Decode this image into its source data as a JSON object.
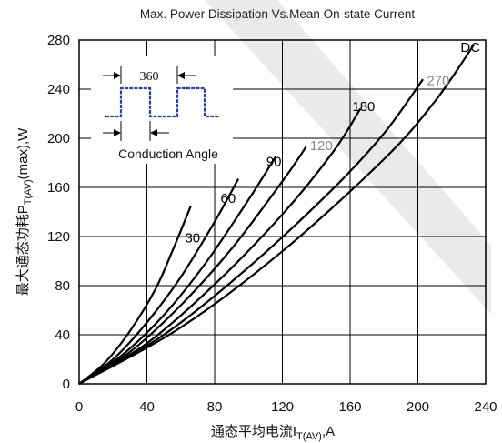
{
  "chart_data": {
    "type": "line",
    "title": "Max. Power Dissipation Vs.Mean On-state Current",
    "xlabel": "通态平均电流I",
    "xlabel_sub": "T(AV)",
    "xlabel_suffix": ",A",
    "ylabel": "最大通态功耗P",
    "ylabel_sub": "T(AV)",
    "ylabel_suffix": "(max),W",
    "xlim": [
      0,
      240
    ],
    "ylim": [
      0,
      280
    ],
    "xticks": [
      0,
      40,
      80,
      120,
      160,
      200,
      240
    ],
    "yticks": [
      0,
      40,
      80,
      120,
      160,
      200,
      240,
      280
    ],
    "grid": true,
    "series": [
      {
        "name": "30",
        "color": "#000000",
        "x": [
          0,
          15,
          30,
          45,
          55,
          66
        ],
        "y": [
          0,
          17,
          43,
          77,
          108,
          145
        ]
      },
      {
        "name": "60",
        "color": "#000000",
        "x": [
          0,
          20,
          40,
          60,
          80,
          94
        ],
        "y": [
          0,
          20,
          50,
          87,
          132,
          167
        ]
      },
      {
        "name": "90",
        "color": "#000000",
        "x": [
          0,
          25,
          50,
          75,
          100,
          116
        ],
        "y": [
          0,
          23,
          56,
          99,
          150,
          185
        ]
      },
      {
        "name": "120",
        "color": "#000000",
        "x": [
          0,
          30,
          60,
          90,
          120,
          134
        ],
        "y": [
          0,
          26,
          64,
          110,
          165,
          193
        ]
      },
      {
        "name": "180",
        "color": "#000000",
        "x": [
          0,
          40,
          80,
          120,
          150,
          166
        ],
        "y": [
          0,
          33,
          81,
          138,
          189,
          224
        ]
      },
      {
        "name": "270",
        "color": "#000000",
        "x": [
          0,
          50,
          100,
          150,
          180,
          203
        ],
        "y": [
          0,
          40,
          95,
          159,
          204,
          248
        ]
      },
      {
        "name": "DC",
        "color": "#000000",
        "x": [
          0,
          60,
          120,
          180,
          210,
          233
        ],
        "y": [
          0,
          46,
          108,
          183,
          230,
          276
        ]
      }
    ],
    "curve_labels": [
      {
        "text": "30",
        "x": 67,
        "y": 119,
        "color": "#000000"
      },
      {
        "text": "60",
        "x": 88,
        "y": 151,
        "color": "#000000"
      },
      {
        "text": "90",
        "x": 115,
        "y": 181,
        "color": "#000000"
      },
      {
        "text": "120",
        "x": 143,
        "y": 194,
        "color": "#888888"
      },
      {
        "text": "180",
        "x": 168,
        "y": 226,
        "color": "#000000"
      },
      {
        "text": "270",
        "x": 212,
        "y": 247,
        "color": "#888888"
      },
      {
        "text": "DC",
        "x": 231,
        "y": 274,
        "color": "#000000"
      }
    ],
    "inset": {
      "label_top": "360",
      "label_bottom": "Conduction Angle",
      "waveform_color": "#2b3f9c"
    }
  }
}
